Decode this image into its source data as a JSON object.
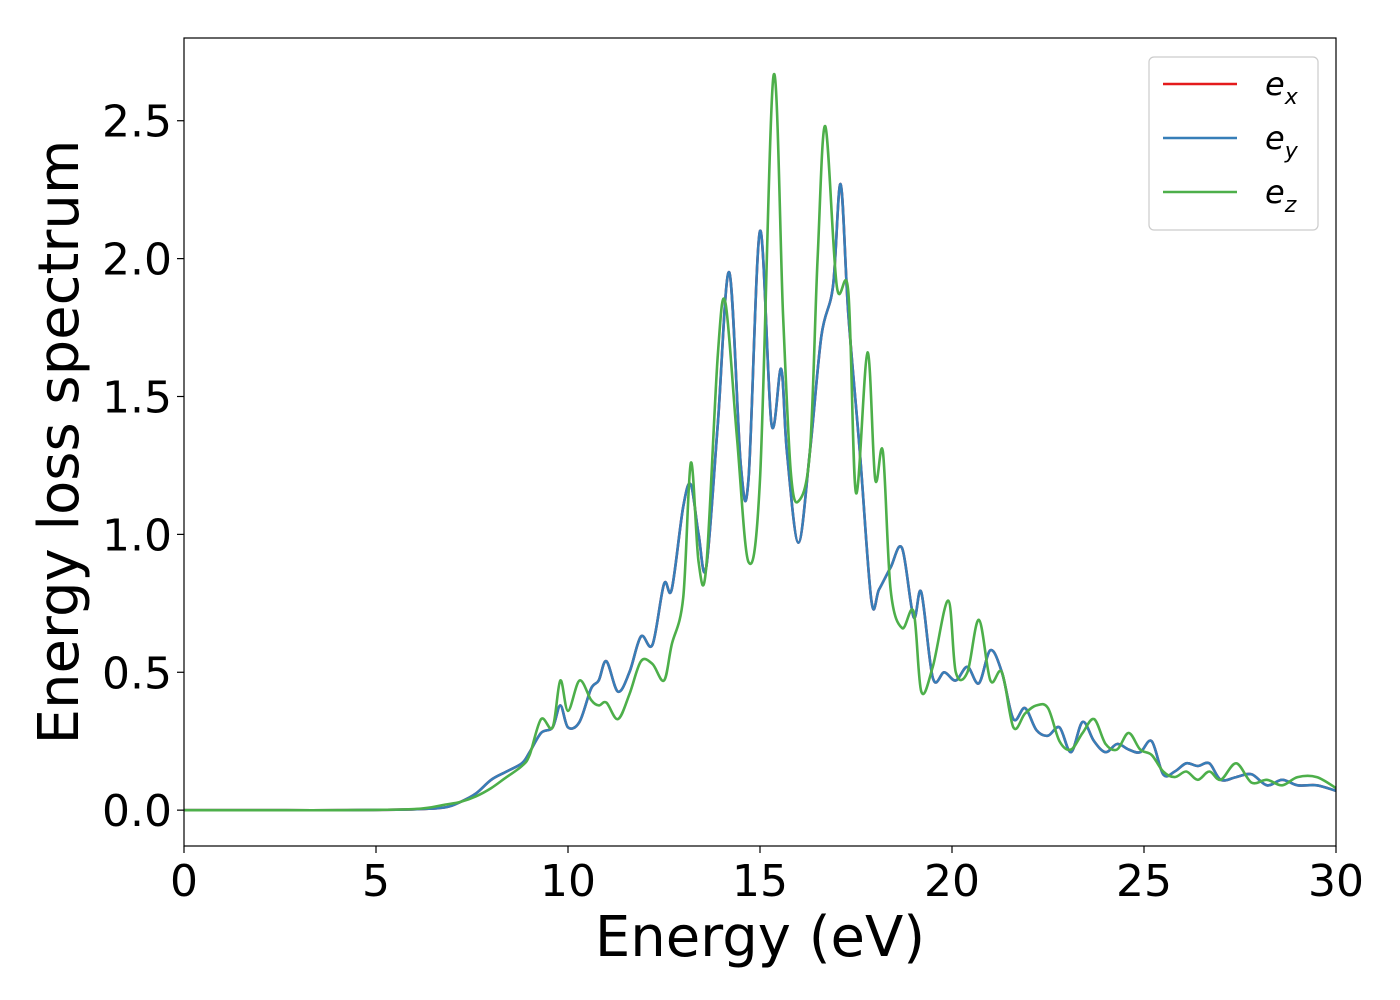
{
  "chart_data": {
    "type": "line",
    "title": "",
    "xlabel": "Energy (eV)",
    "ylabel": "Energy loss spectrum",
    "xlim": [
      0,
      30
    ],
    "ylim": [
      -0.13,
      2.8
    ],
    "xticks": [
      0,
      5,
      10,
      15,
      20,
      25,
      30
    ],
    "xtick_labels": [
      "0",
      "5",
      "10",
      "15",
      "20",
      "25",
      "30"
    ],
    "yticks": [
      0.0,
      0.5,
      1.0,
      1.5,
      2.0,
      2.5
    ],
    "ytick_labels": [
      "0.0",
      "0.5",
      "1.0",
      "1.5",
      "2.0",
      "2.5"
    ],
    "grid": false,
    "legend_position": "top-right",
    "series": [
      {
        "name": "e_x",
        "legend_base": "e",
        "legend_sub": "x",
        "color": "#e41a1c",
        "x": [
          0,
          2,
          4,
          6,
          6.8,
          7.2,
          7.6,
          8.0,
          8.4,
          8.8,
          9.0,
          9.3,
          9.6,
          9.8,
          10.0,
          10.3,
          10.6,
          10.8,
          11.0,
          11.3,
          11.6,
          11.9,
          12.2,
          12.5,
          12.7,
          13.0,
          13.2,
          13.4,
          13.6,
          13.9,
          14.2,
          14.5,
          14.7,
          15.0,
          15.3,
          15.55,
          15.7,
          16.0,
          16.3,
          16.6,
          16.9,
          17.1,
          17.3,
          17.6,
          17.9,
          18.1,
          18.4,
          18.7,
          19.0,
          19.2,
          19.5,
          19.8,
          20.1,
          20.4,
          20.7,
          21.0,
          21.3,
          21.6,
          21.9,
          22.2,
          22.5,
          22.8,
          23.1,
          23.4,
          23.7,
          24.0,
          24.3,
          24.6,
          24.9,
          25.2,
          25.5,
          25.8,
          26.1,
          26.4,
          26.7,
          27.0,
          27.4,
          27.8,
          28.2,
          28.6,
          29.0,
          29.5,
          30.0
        ],
        "y": [
          0.0,
          0.0,
          0.0,
          0.003,
          0.01,
          0.03,
          0.06,
          0.11,
          0.14,
          0.17,
          0.21,
          0.28,
          0.3,
          0.38,
          0.3,
          0.32,
          0.44,
          0.47,
          0.54,
          0.43,
          0.5,
          0.63,
          0.6,
          0.82,
          0.8,
          1.1,
          1.18,
          1.0,
          0.88,
          1.4,
          1.95,
          1.25,
          1.2,
          2.1,
          1.4,
          1.6,
          1.3,
          0.97,
          1.3,
          1.72,
          1.9,
          2.27,
          1.8,
          1.3,
          0.76,
          0.8,
          0.88,
          0.95,
          0.7,
          0.79,
          0.48,
          0.5,
          0.47,
          0.52,
          0.46,
          0.58,
          0.5,
          0.33,
          0.37,
          0.29,
          0.27,
          0.3,
          0.21,
          0.32,
          0.25,
          0.21,
          0.24,
          0.22,
          0.21,
          0.25,
          0.13,
          0.14,
          0.17,
          0.16,
          0.17,
          0.11,
          0.12,
          0.13,
          0.09,
          0.11,
          0.09,
          0.09,
          0.07
        ]
      },
      {
        "name": "e_y",
        "legend_base": "e",
        "legend_sub": "y",
        "color": "#377eb8",
        "x": [
          0,
          2,
          4,
          6,
          6.8,
          7.2,
          7.6,
          8.0,
          8.4,
          8.8,
          9.0,
          9.3,
          9.6,
          9.8,
          10.0,
          10.3,
          10.6,
          10.8,
          11.0,
          11.3,
          11.6,
          11.9,
          12.2,
          12.5,
          12.7,
          13.0,
          13.2,
          13.4,
          13.6,
          13.9,
          14.2,
          14.5,
          14.7,
          15.0,
          15.3,
          15.55,
          15.7,
          16.0,
          16.3,
          16.6,
          16.9,
          17.1,
          17.3,
          17.6,
          17.9,
          18.1,
          18.4,
          18.7,
          19.0,
          19.2,
          19.5,
          19.8,
          20.1,
          20.4,
          20.7,
          21.0,
          21.3,
          21.6,
          21.9,
          22.2,
          22.5,
          22.8,
          23.1,
          23.4,
          23.7,
          24.0,
          24.3,
          24.6,
          24.9,
          25.2,
          25.5,
          25.8,
          26.1,
          26.4,
          26.7,
          27.0,
          27.4,
          27.8,
          28.2,
          28.6,
          29.0,
          29.5,
          30.0
        ],
        "y": [
          0.0,
          0.0,
          0.0,
          0.003,
          0.01,
          0.03,
          0.06,
          0.11,
          0.14,
          0.17,
          0.21,
          0.28,
          0.3,
          0.38,
          0.3,
          0.32,
          0.44,
          0.47,
          0.54,
          0.43,
          0.5,
          0.63,
          0.6,
          0.82,
          0.8,
          1.1,
          1.18,
          1.0,
          0.88,
          1.4,
          1.95,
          1.25,
          1.2,
          2.1,
          1.4,
          1.6,
          1.3,
          0.97,
          1.3,
          1.72,
          1.9,
          2.27,
          1.8,
          1.3,
          0.76,
          0.8,
          0.88,
          0.95,
          0.7,
          0.79,
          0.48,
          0.5,
          0.47,
          0.52,
          0.46,
          0.58,
          0.5,
          0.33,
          0.37,
          0.29,
          0.27,
          0.3,
          0.21,
          0.32,
          0.25,
          0.21,
          0.24,
          0.22,
          0.21,
          0.25,
          0.13,
          0.14,
          0.17,
          0.16,
          0.17,
          0.11,
          0.12,
          0.13,
          0.09,
          0.11,
          0.09,
          0.09,
          0.07
        ]
      },
      {
        "name": "e_z",
        "legend_base": "e",
        "legend_sub": "z",
        "color": "#4daf4a",
        "x": [
          0,
          2,
          4,
          6,
          6.8,
          7.2,
          7.6,
          8.0,
          8.4,
          8.8,
          9.0,
          9.3,
          9.6,
          9.8,
          10.0,
          10.3,
          10.6,
          10.8,
          11.0,
          11.3,
          11.6,
          11.9,
          12.2,
          12.5,
          12.7,
          13.0,
          13.2,
          13.4,
          13.6,
          13.9,
          14.1,
          14.4,
          14.7,
          15.0,
          15.35,
          15.6,
          15.8,
          16.0,
          16.3,
          16.5,
          16.7,
          17.0,
          17.3,
          17.5,
          17.8,
          18.0,
          18.2,
          18.4,
          18.7,
          19.0,
          19.2,
          19.5,
          19.9,
          20.1,
          20.4,
          20.7,
          21.0,
          21.3,
          21.6,
          21.9,
          22.2,
          22.5,
          22.8,
          23.1,
          23.4,
          23.7,
          24.0,
          24.3,
          24.6,
          24.9,
          25.2,
          25.5,
          25.8,
          26.1,
          26.4,
          26.7,
          27.0,
          27.4,
          27.8,
          28.2,
          28.6,
          29.0,
          29.5,
          30.0
        ],
        "y": [
          0.0,
          0.0,
          0.0,
          0.004,
          0.02,
          0.03,
          0.05,
          0.08,
          0.12,
          0.16,
          0.2,
          0.33,
          0.3,
          0.47,
          0.36,
          0.47,
          0.4,
          0.38,
          0.39,
          0.33,
          0.42,
          0.54,
          0.53,
          0.47,
          0.6,
          0.77,
          1.26,
          0.9,
          0.88,
          1.65,
          1.84,
          1.35,
          0.9,
          1.2,
          2.66,
          1.8,
          1.23,
          1.12,
          1.3,
          2.0,
          2.48,
          1.9,
          1.88,
          1.15,
          1.66,
          1.2,
          1.3,
          0.8,
          0.66,
          0.72,
          0.43,
          0.52,
          0.76,
          0.5,
          0.5,
          0.69,
          0.47,
          0.5,
          0.3,
          0.35,
          0.38,
          0.37,
          0.25,
          0.22,
          0.28,
          0.33,
          0.24,
          0.22,
          0.28,
          0.22,
          0.2,
          0.14,
          0.12,
          0.14,
          0.11,
          0.14,
          0.11,
          0.17,
          0.1,
          0.11,
          0.09,
          0.12,
          0.12,
          0.08
        ]
      }
    ]
  }
}
